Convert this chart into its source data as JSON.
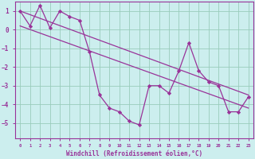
{
  "x": [
    0,
    1,
    2,
    3,
    4,
    5,
    6,
    7,
    8,
    9,
    10,
    11,
    12,
    13,
    14,
    15,
    16,
    17,
    18,
    19,
    20,
    21,
    22,
    23
  ],
  "y": [
    1.0,
    0.2,
    1.3,
    0.1,
    1.0,
    0.7,
    0.5,
    -1.2,
    -3.5,
    -4.2,
    -4.4,
    -4.9,
    -5.1,
    -3.0,
    -3.0,
    -3.4,
    -2.2,
    -0.7,
    -2.2,
    -2.8,
    -3.0,
    -4.4,
    -4.4,
    -3.6
  ],
  "trend1_x": [
    0,
    23
  ],
  "trend1_y": [
    1.0,
    -3.5
  ],
  "trend2_x": [
    0,
    23
  ],
  "trend2_y": [
    0.2,
    -4.2
  ],
  "line_color": "#993399",
  "bg_color": "#cceeee",
  "grid_color": "#99ccbb",
  "xlabel": "Windchill (Refroidissement éolien,°C)",
  "ylim": [
    -5.8,
    1.5
  ],
  "xlim": [
    -0.5,
    23.5
  ],
  "yticks": [
    1,
    0,
    -1,
    -2,
    -3,
    -4,
    -5
  ],
  "xticks": [
    0,
    1,
    2,
    3,
    4,
    5,
    6,
    7,
    8,
    9,
    10,
    11,
    12,
    13,
    14,
    15,
    16,
    17,
    18,
    19,
    20,
    21,
    22,
    23
  ]
}
